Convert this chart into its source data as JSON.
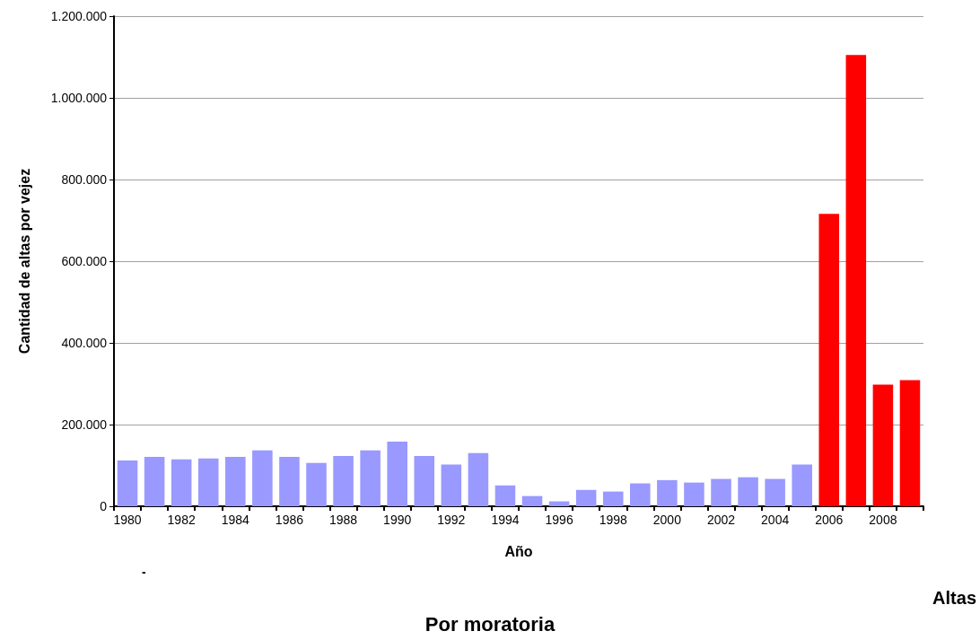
{
  "chart_data": {
    "type": "bar",
    "xlabel": "Año",
    "ylabel": "Cantidad de altas por vejez",
    "categories": [
      "1980",
      null,
      "1982",
      null,
      "1984",
      null,
      "1986",
      null,
      "1988",
      null,
      "1990",
      null,
      "1992",
      null,
      "1994",
      null,
      "1996",
      null,
      "1998",
      null,
      "2000",
      null,
      "2002",
      null,
      "2004",
      null,
      "2006",
      null,
      "2008",
      null
    ],
    "values": [
      112000,
      121000,
      115000,
      117000,
      121000,
      137000,
      121000,
      106000,
      123000,
      137000,
      158000,
      123000,
      102000,
      130000,
      51000,
      25000,
      12000,
      40000,
      36000,
      56000,
      64000,
      58000,
      67000,
      71000,
      67000,
      102000,
      716000,
      1105000,
      298000,
      309000
    ],
    "colors": [
      "#9999ff",
      "#9999ff",
      "#9999ff",
      "#9999ff",
      "#9999ff",
      "#9999ff",
      "#9999ff",
      "#9999ff",
      "#9999ff",
      "#9999ff",
      "#9999ff",
      "#9999ff",
      "#9999ff",
      "#9999ff",
      "#9999ff",
      "#9999ff",
      "#9999ff",
      "#9999ff",
      "#9999ff",
      "#9999ff",
      "#9999ff",
      "#9999ff",
      "#9999ff",
      "#9999ff",
      "#9999ff",
      "#9999ff",
      "#ff0000",
      "#ff0000",
      "#ff0000",
      "#ff0000"
    ],
    "ylim": [
      0,
      1200000
    ],
    "yticks": [
      {
        "value": 0,
        "label": "0"
      },
      {
        "value": 200000,
        "label": "200.000"
      },
      {
        "value": 400000,
        "label": "400.000"
      },
      {
        "value": 600000,
        "label": "600.000"
      },
      {
        "value": 800000,
        "label": "800.000"
      },
      {
        "value": 1000000,
        "label": "1.000.000"
      },
      {
        "value": 1200000,
        "label": "1.200.000"
      }
    ],
    "grid": "y",
    "annotations": [
      "Altas",
      "Por moratoria",
      "-"
    ]
  }
}
